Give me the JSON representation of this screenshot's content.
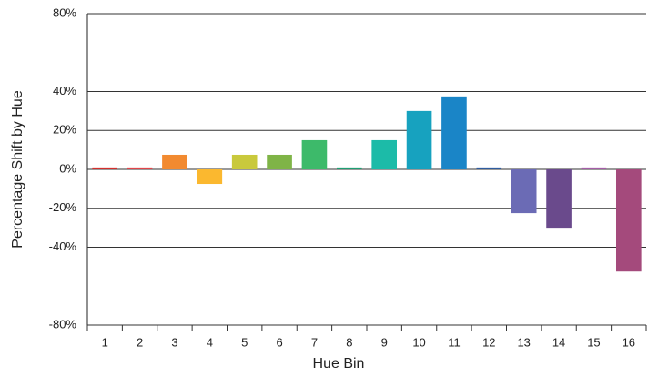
{
  "chart_data": {
    "type": "bar",
    "xlabel": "Hue Bin",
    "ylabel": "Percentage Shift by Hue",
    "categories": [
      "1",
      "2",
      "3",
      "4",
      "5",
      "6",
      "7",
      "8",
      "9",
      "10",
      "11",
      "12",
      "13",
      "14",
      "15",
      "16"
    ],
    "values": [
      1,
      1,
      7.5,
      -7.5,
      7.5,
      7.5,
      15,
      1,
      15,
      30,
      37.5,
      1,
      -22.5,
      -30,
      1,
      -52.5
    ],
    "colors": [
      "#d3302d",
      "#e0454a",
      "#f28a30",
      "#fbb82f",
      "#c9c93c",
      "#7fb447",
      "#3dba6a",
      "#1f9e73",
      "#1cbba8",
      "#17a2bf",
      "#1a85c7",
      "#2f5c9e",
      "#6b6bb5",
      "#6a4a8c",
      "#a45ea6",
      "#a44a7c"
    ],
    "ylim": [
      -80,
      80
    ],
    "yticks": [
      {
        "value": -80,
        "label": "-80%"
      },
      {
        "value": -40,
        "label": "-40%"
      },
      {
        "value": -20,
        "label": "-20%"
      },
      {
        "value": 0,
        "label": "0%"
      },
      {
        "value": 20,
        "label": "20%"
      },
      {
        "value": 40,
        "label": "40%"
      },
      {
        "value": 80,
        "label": "80%"
      }
    ],
    "grid": true
  }
}
